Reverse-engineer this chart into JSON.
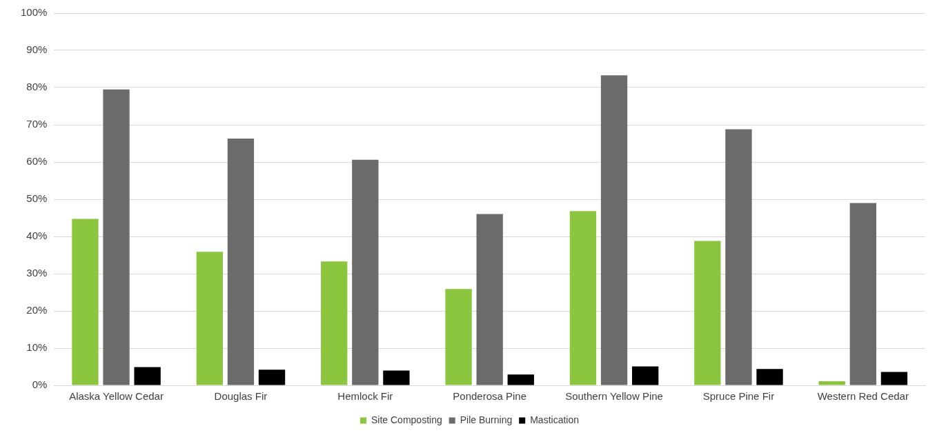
{
  "chart_data": {
    "type": "bar",
    "categories": [
      "Alaska Yellow Cedar",
      "Douglas Fir",
      "Hemlock Fir",
      "Ponderosa Pine",
      "Southern Yellow Pine",
      "Spruce Pine Fir",
      "Western Red Cedar"
    ],
    "series": [
      {
        "name": "Site Composting",
        "color": "#8cc63e",
        "values": [
          44.7,
          35.9,
          33.3,
          25.9,
          46.8,
          38.8,
          1.1
        ]
      },
      {
        "name": "Pile Burning",
        "color": "#6b6b6b",
        "values": [
          79.5,
          66.3,
          60.6,
          46,
          83.3,
          68.8,
          49
        ]
      },
      {
        "name": "Mastication",
        "color": "#000000",
        "values": [
          4.9,
          4.2,
          4,
          2.9,
          5.1,
          4.4,
          3.6
        ]
      }
    ],
    "ylim": [
      0,
      100
    ],
    "yticks": [
      {
        "value": 0,
        "label": "0%"
      },
      {
        "value": 10,
        "label": "10%"
      },
      {
        "value": 20,
        "label": "20%"
      },
      {
        "value": 30,
        "label": "30%"
      },
      {
        "value": 40,
        "label": "40%"
      },
      {
        "value": 50,
        "label": "50%"
      },
      {
        "value": 60,
        "label": "60%"
      },
      {
        "value": 70,
        "label": "70%"
      },
      {
        "value": 80,
        "label": "80%"
      },
      {
        "value": 90,
        "label": "90%"
      },
      {
        "value": 100,
        "label": "100%"
      }
    ],
    "grid": "y",
    "legend": "bottom"
  }
}
